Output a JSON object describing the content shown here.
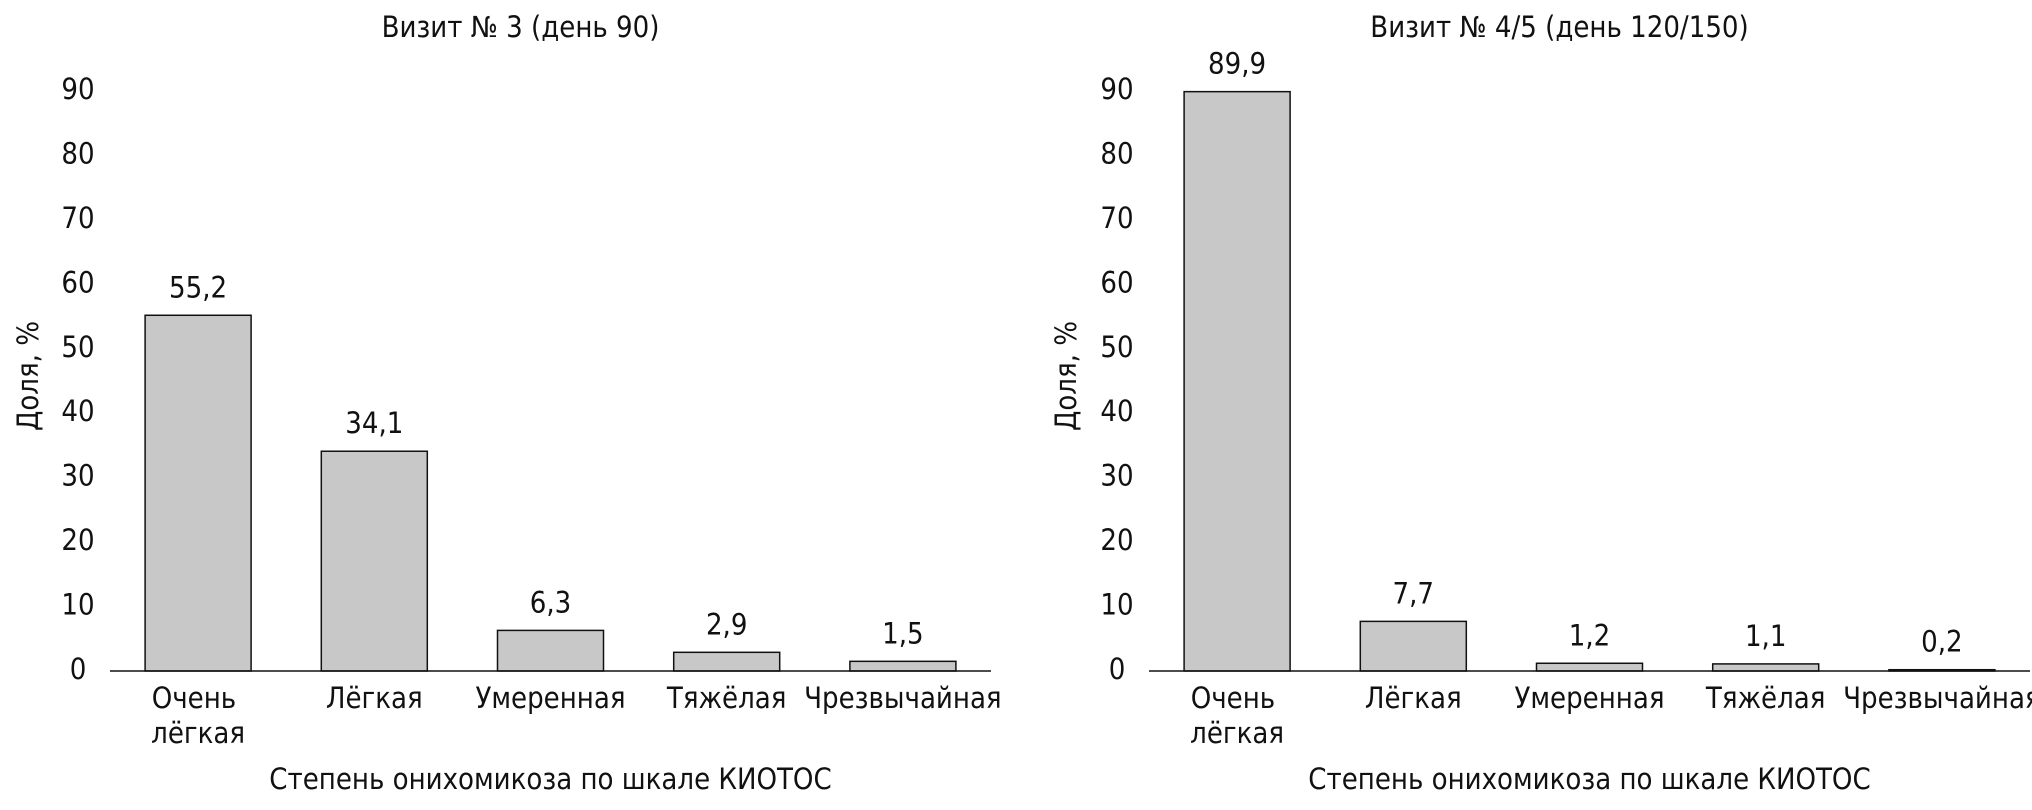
{
  "chart_data": [
    {
      "type": "bar",
      "title": "Визит № 3 (день 90)",
      "x_label": "Степень онихомикоза по шкале КИОТОС",
      "y_label": "Доля, %",
      "categories": [
        "Очень лёгкая",
        "Лёгкая",
        "Умеренная",
        "Тяжёлая",
        "Чрезвычайная"
      ],
      "values": [
        55.2,
        34.1,
        6.3,
        2.9,
        1.5
      ],
      "value_labels": [
        "55,2",
        "34,1",
        "6,3",
        "2,9",
        "1,5"
      ],
      "color": "#c8c8c8",
      "ylim": [
        0,
        90
      ],
      "yticks": [
        0,
        10,
        20,
        30,
        40,
        50,
        60,
        70,
        80,
        90
      ]
    },
    {
      "type": "bar",
      "title": "Визит № 4/5 (день 120/150)",
      "x_label": "Степень онихомикоза по шкале КИОТОС",
      "y_label": "Доля, %",
      "categories": [
        "Очень лёгкая",
        "Лёгкая",
        "Умеренная",
        "Тяжёлая",
        "Чрезвычайная"
      ],
      "values": [
        89.9,
        7.7,
        1.2,
        1.1,
        0.2
      ],
      "value_labels": [
        "89,9",
        "7,7",
        "1,2",
        "1,1",
        "0,2"
      ],
      "color": "#c8c8c8",
      "ylim": [
        0,
        90
      ],
      "yticks": [
        0,
        10,
        20,
        30,
        40,
        50,
        60,
        70,
        80,
        90
      ]
    }
  ]
}
